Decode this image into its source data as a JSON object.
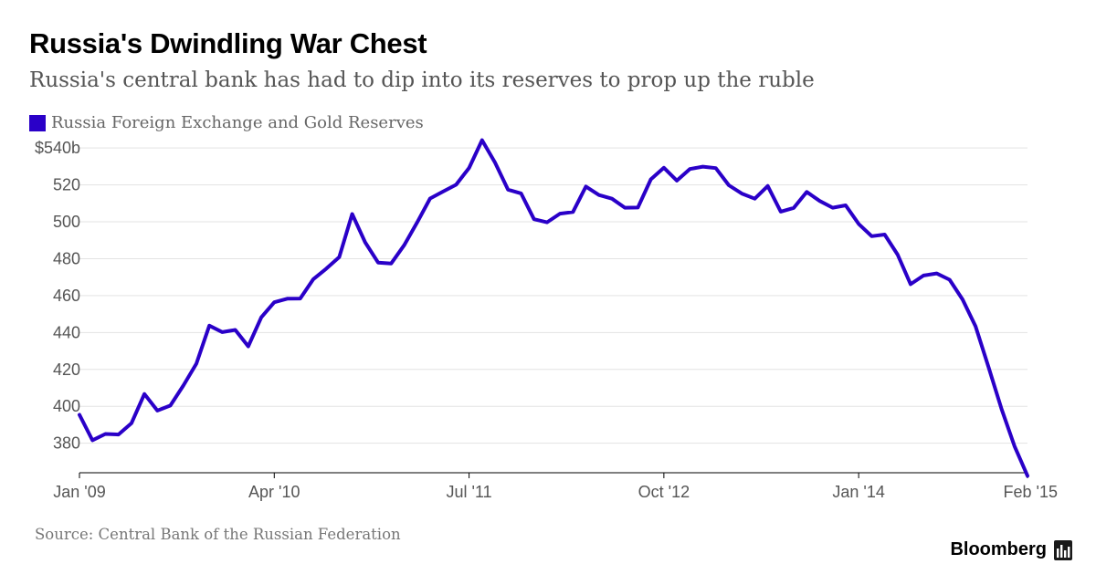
{
  "title": "Russia's Dwindling War Chest",
  "subtitle": "Russia's central bank has had to dip into its reserves to prop up the ruble",
  "source": "Source: Central Bank of the Russian Federation",
  "brand": "Bloomberg",
  "icon": "bloomberg-chart-icon",
  "colors": {
    "series": "#2a00c8",
    "grid": "#e3e3e3",
    "axis": "#000000",
    "text": "#555555"
  },
  "chart_data": {
    "type": "line",
    "title": "Russia's Dwindling War Chest",
    "subtitle": "Russia's central bank has had to dip into its reserves to prop up the ruble",
    "xlabel": "",
    "ylabel": "",
    "ylim": [
      364,
      546
    ],
    "grid": true,
    "legend_position": "top-left",
    "y_ticks": [
      {
        "value": 540,
        "label": "$540b"
      },
      {
        "value": 520,
        "label": "520"
      },
      {
        "value": 500,
        "label": "500"
      },
      {
        "value": 480,
        "label": "480"
      },
      {
        "value": 460,
        "label": "460"
      },
      {
        "value": 440,
        "label": "440"
      },
      {
        "value": 420,
        "label": "420"
      },
      {
        "value": 400,
        "label": "400"
      },
      {
        "value": 380,
        "label": "380"
      }
    ],
    "x_ticks": [
      {
        "index": 0,
        "label": "Jan '09"
      },
      {
        "index": 15,
        "label": "Apr '10"
      },
      {
        "index": 30,
        "label": "Jul '11"
      },
      {
        "index": 45,
        "label": "Oct '12"
      },
      {
        "index": 60,
        "label": "Jan '14"
      },
      {
        "index": 73,
        "label": "Feb '15"
      }
    ],
    "series": [
      {
        "name": "Russia Foreign Exchange and Gold Reserves",
        "color": "#2a00c8",
        "values": [
          395.4,
          381.6,
          385.0,
          384.7,
          390.8,
          406.7,
          397.7,
          400.4,
          411.3,
          423.1,
          443.7,
          440.2,
          441.4,
          432.5,
          448.2,
          456.4,
          458.3,
          458.4,
          468.8,
          474.6,
          480.8,
          504.2,
          488.9,
          477.9,
          477.4,
          487.3,
          499.6,
          512.6,
          516.4,
          520.1,
          529.2,
          544.2,
          532.1,
          517.4,
          515.4,
          501.4,
          499.7,
          504.4,
          505.3,
          519.1,
          514.5,
          512.5,
          507.6,
          507.7,
          523.0,
          529.3,
          522.3,
          528.6,
          529.9,
          529.1,
          519.8,
          515.3,
          512.5,
          519.4,
          505.5,
          507.5,
          516.2,
          511.3,
          507.6,
          508.9,
          498.8,
          492.2,
          493.1,
          482.2,
          466.2,
          470.9,
          472.0,
          468.6,
          457.9,
          443.4,
          421.3,
          398.5,
          378.4,
          362.3
        ]
      }
    ]
  }
}
